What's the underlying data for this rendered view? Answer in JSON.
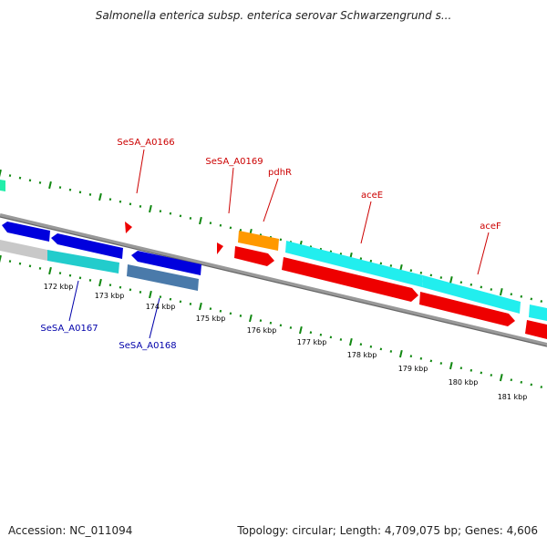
{
  "title": "Salmonella enterica subsp. enterica serovar Schwarzengrund s...",
  "accession": "Accession: NC_011094",
  "summary": "Topology: circular; Length: 4,709,075 bp; Genes: 4,606",
  "ticks": [
    "172 kbp",
    "173 kbp",
    "174 kbp",
    "175 kbp",
    "176 kbp",
    "177 kbp",
    "178 kbp",
    "179 kbp",
    "180 kbp",
    "181 kbp"
  ],
  "gene_labels": {
    "a0166": "SeSA_A0166",
    "a0169": "SeSA_A0169",
    "pdhR": "pdhR",
    "aceE": "aceE",
    "aceF": "aceF",
    "a0167": "SeSA_A0167",
    "a0168": "SeSA_A0168"
  },
  "colors": {
    "forward_label": "#cc0000",
    "reverse_label": "#0000aa",
    "cds_red": "#ee0000",
    "cds_blue": "#0000dd",
    "cds_cyan": "#22eeee",
    "cds_orange": "#ff9900",
    "cds_gray": "#c8c8c8",
    "cds_teal": "#22cccc",
    "cds_steel": "#4a7aaa",
    "backbone": "#888888",
    "dots": "#118811"
  }
}
